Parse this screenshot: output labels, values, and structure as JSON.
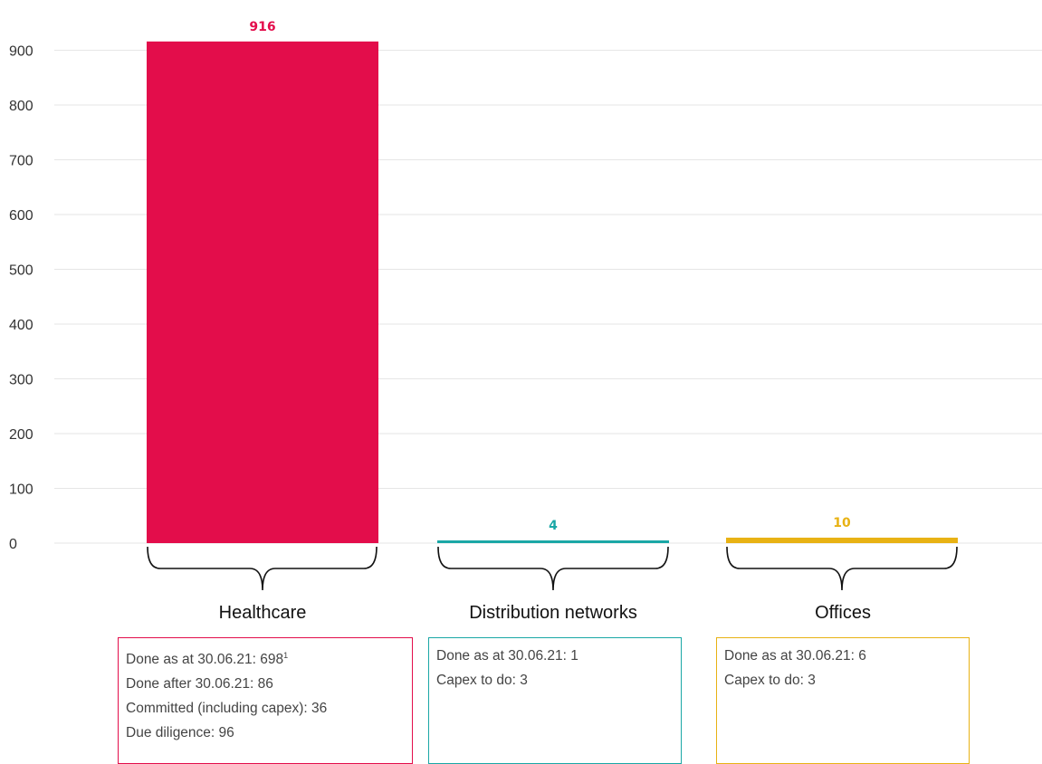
{
  "chart_data": {
    "type": "bar",
    "categories": [
      "Healthcare",
      "Distribution networks",
      "Offices"
    ],
    "values": [
      916,
      4,
      10
    ],
    "value_labels": [
      "916",
      "4",
      "10"
    ],
    "colors": [
      "#e30d4b",
      "#1aa7a6",
      "#e8b214"
    ],
    "yticks": [
      "0",
      "100",
      "200",
      "300",
      "400",
      "500",
      "600",
      "700",
      "800",
      "900"
    ],
    "ylim": [
      0,
      916
    ],
    "grid": true
  },
  "details": [
    {
      "lines": [
        {
          "text": "Done as at 30.06.21: 698",
          "sup": "1"
        },
        {
          "text": "Done after 30.06.21: 86",
          "sup": ""
        },
        {
          "text": "Committed (including capex): 36",
          "sup": ""
        },
        {
          "text": "Due diligence: 96",
          "sup": ""
        }
      ]
    },
    {
      "lines": [
        {
          "text": "Done as at 30.06.21: 1",
          "sup": ""
        },
        {
          "text": "Capex to do: 3",
          "sup": ""
        }
      ]
    },
    {
      "lines": [
        {
          "text": "Done as at 30.06.21: 6",
          "sup": ""
        },
        {
          "text": "Capex to do: 3",
          "sup": ""
        }
      ]
    }
  ]
}
